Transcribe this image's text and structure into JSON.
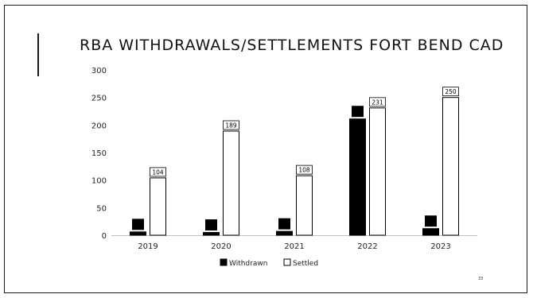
{
  "slide": {
    "title": "RBA WITHDRAWALS/SETTLEMENTS FORT BEND CAD",
    "page_number": "33"
  },
  "chart_data": {
    "type": "bar",
    "categories": [
      "2019",
      "2020",
      "2021",
      "2022",
      "2023"
    ],
    "series": [
      {
        "name": "Withdrawn",
        "values": [
          6,
          5,
          7,
          211,
          12
        ],
        "color": "#000000"
      },
      {
        "name": "Settled",
        "values": [
          104,
          189,
          108,
          231,
          250
        ],
        "color": "#ffffff"
      }
    ],
    "data_labels": [
      "104",
      "189",
      "108",
      "231",
      "250"
    ],
    "y_ticks": [
      "0",
      "50",
      "100",
      "150",
      "200",
      "250",
      "300"
    ],
    "ylim": [
      0,
      300
    ],
    "legend_position": "bottom",
    "grid": false
  }
}
